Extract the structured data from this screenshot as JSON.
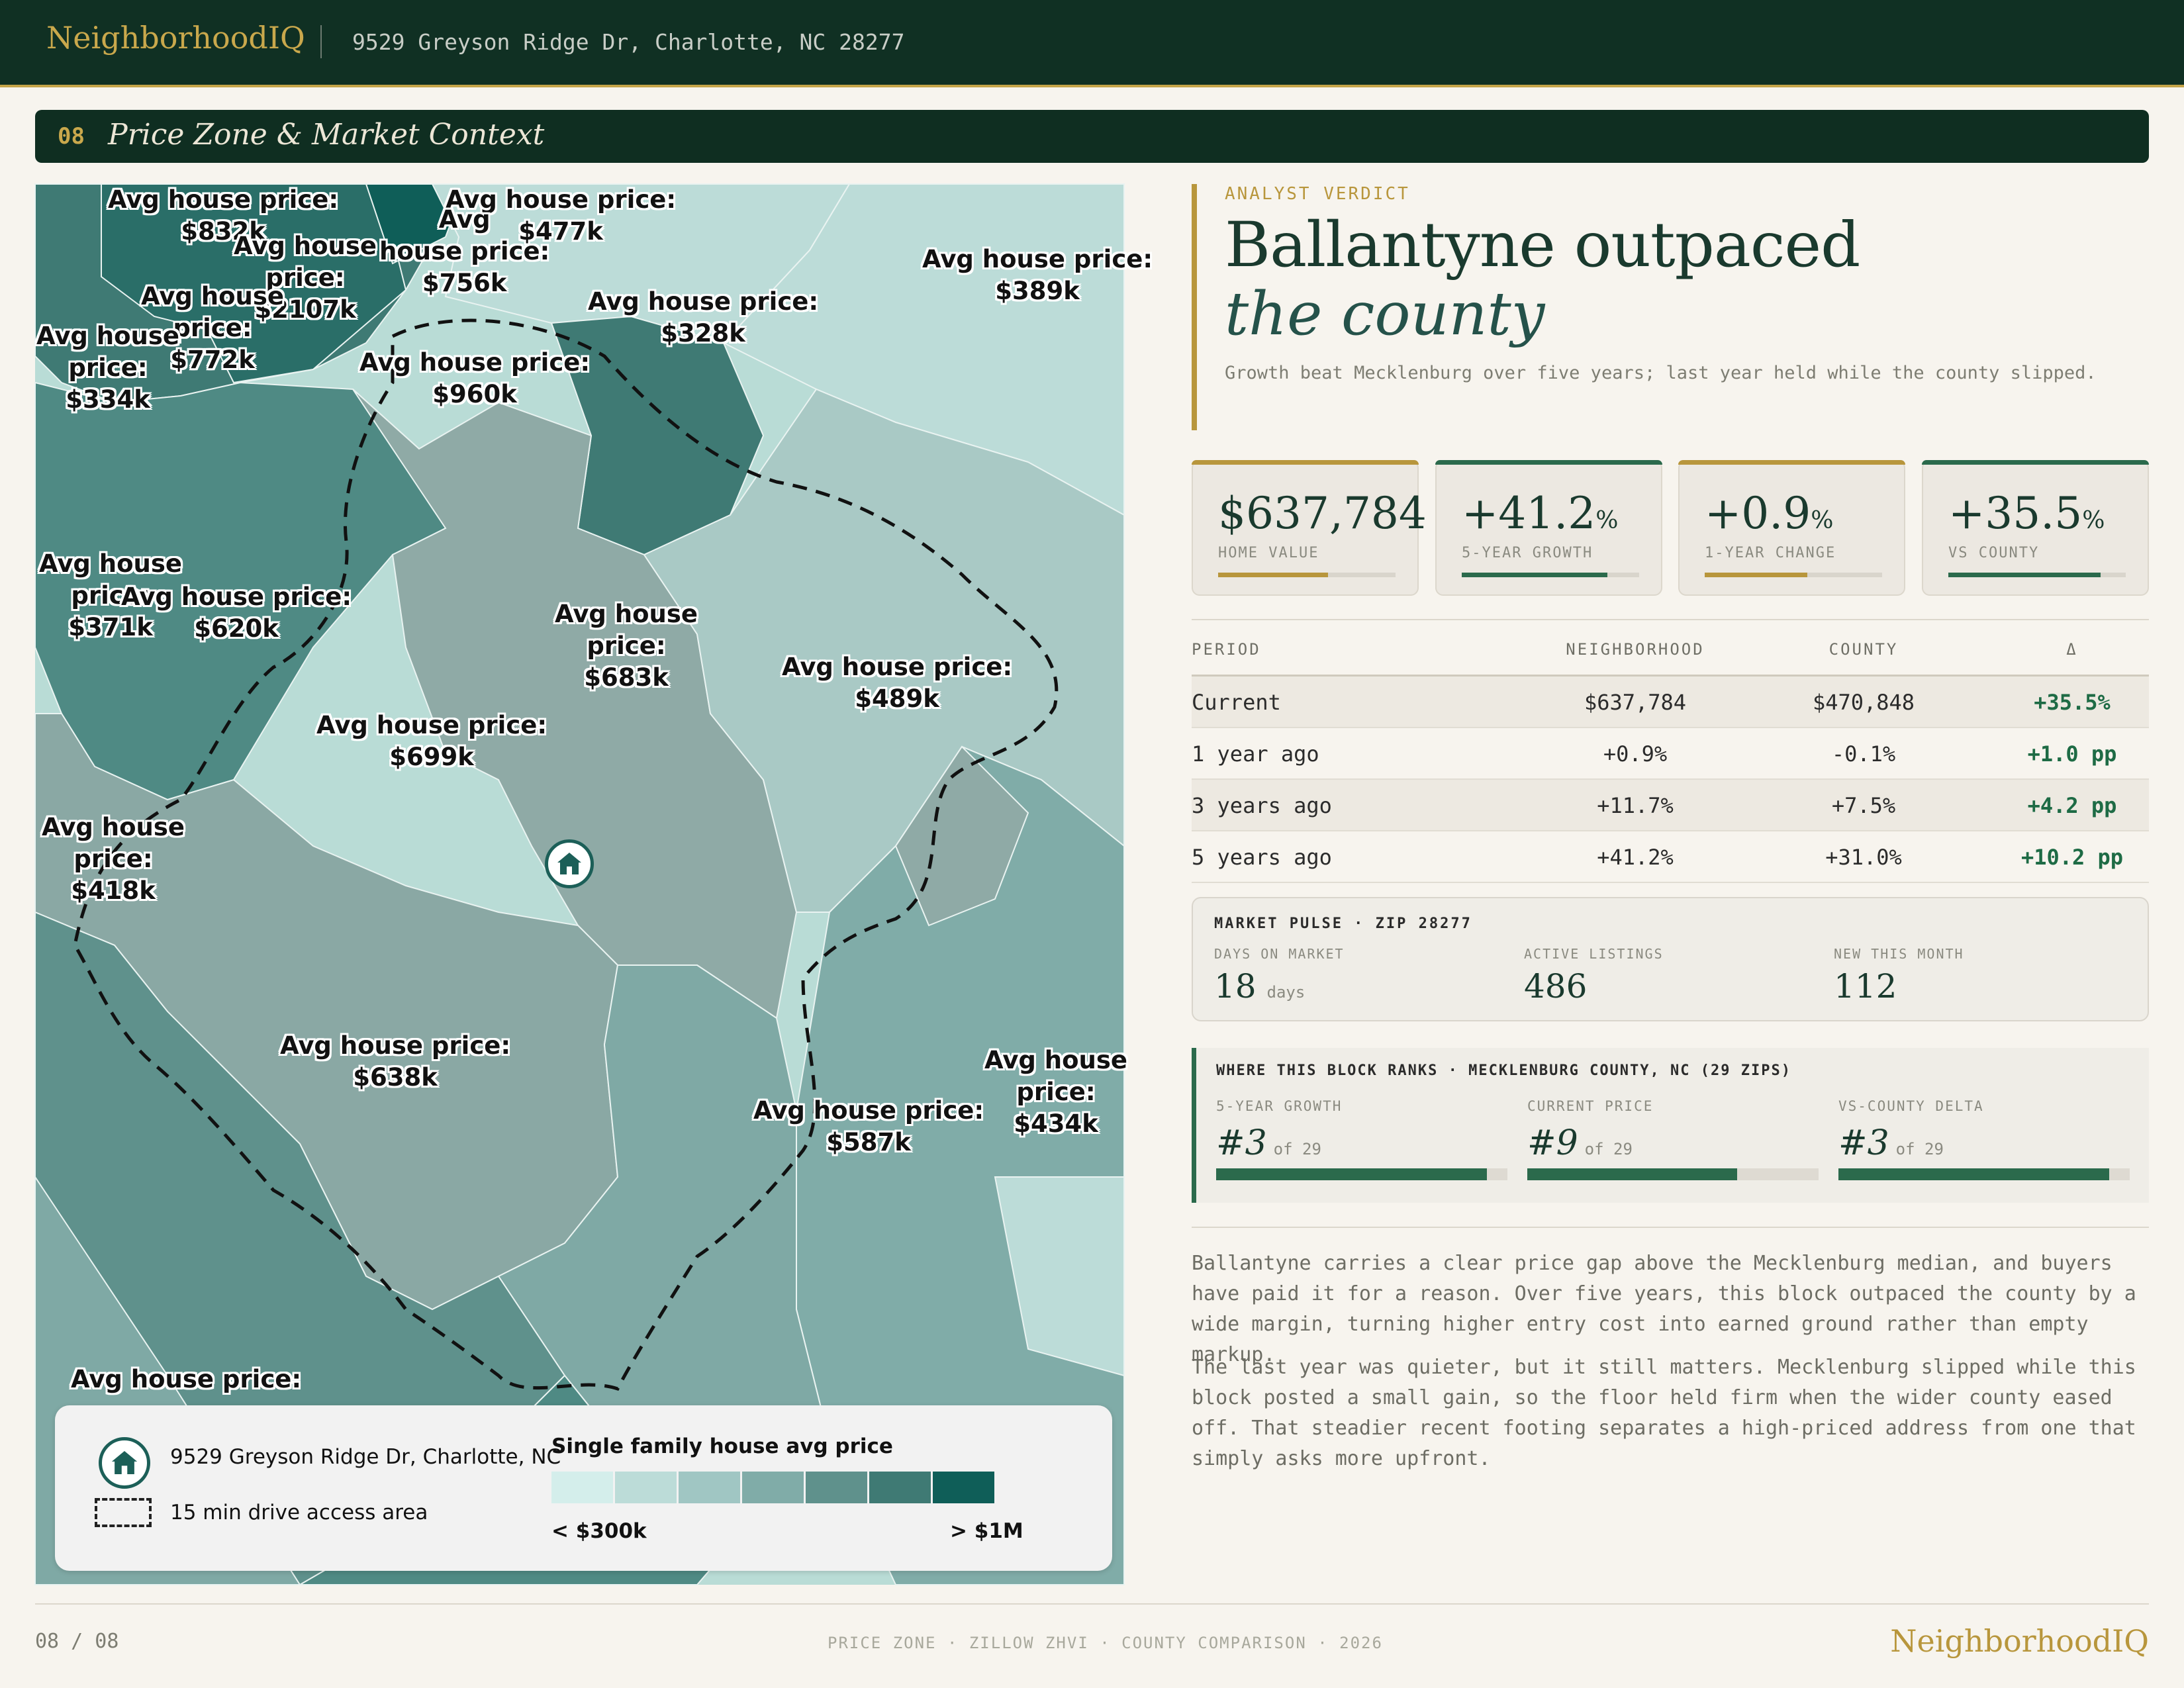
{
  "header": {
    "brand": "NeighborhoodIQ",
    "address": "9529 Greyson Ridge Dr, Charlotte, NC 28277"
  },
  "section": {
    "number": "08",
    "title": "Price Zone & Market Context"
  },
  "map": {
    "icons": {
      "home": "home-icon"
    },
    "labels": [
      "Avg house price:\n$832k",
      "Avg house price:\n$477k",
      "Avg\nhouse price:\n$756k",
      "Avg house\nprice:\n$2107k",
      "Avg house price:\n$389k",
      "Avg house\nprice:\n$772k",
      "Avg house price:\n$328k",
      "Avg house\nprice:\n$334k",
      "Avg house price:\n$960k",
      "Avg house\nprice:\n$371k",
      "Avg house price:\n$620k",
      "Avg house\nprice:\n$683k",
      "Avg house price:\n$489k",
      "Avg house price:\n$699k",
      "Avg house\nprice:\n$418k",
      "Avg house price:\n$638k",
      "Avg house price:\n$587k",
      "Avg house\nprice:\n$434k",
      "Avg house price:"
    ],
    "legend": {
      "address": "9529 Greyson Ridge Dr, Charlotte, NC",
      "drive_area": "15 min drive access area",
      "scale_title": "Single family house avg price",
      "low": "< $300k",
      "high": "> $1M",
      "colors": [
        "#d4eeeb",
        "#bcdcd8",
        "#a0c6c3",
        "#80aca8",
        "#5f918c",
        "#3f7a74",
        "#0f5e58"
      ]
    }
  },
  "verdict": {
    "kicker": "ANALYST VERDICT",
    "headline_1": "Ballantyne outpaced",
    "headline_2": "the county",
    "subhead": "Growth beat Mecklenburg over five years; last year held while the county slipped."
  },
  "kpis": [
    {
      "value": "$637,784",
      "suffix": "",
      "label": "HOME VALUE",
      "fill": 0.62,
      "color": "#b8963c"
    },
    {
      "value": "+41.2",
      "suffix": "%",
      "label": "5-YEAR GROWTH",
      "fill": 0.82,
      "color": "#2b6a4c"
    },
    {
      "value": "+0.9",
      "suffix": "%",
      "label": "1-YEAR CHANGE",
      "fill": 0.58,
      "color": "#b8963c"
    },
    {
      "value": "+35.5",
      "suffix": "%",
      "label": "VS COUNTY",
      "fill": 0.86,
      "color": "#2b6a4c"
    }
  ],
  "comparison": {
    "headers": [
      "PERIOD",
      "NEIGHBORHOOD",
      "COUNTY",
      "Δ"
    ],
    "rows": [
      {
        "period": "Current",
        "neighborhood": "$637,784",
        "county": "$470,848",
        "delta": "+35.5%"
      },
      {
        "period": "1 year ago",
        "neighborhood": "+0.9%",
        "county": "-0.1%",
        "delta": "+1.0 pp"
      },
      {
        "period": "3 years ago",
        "neighborhood": "+11.7%",
        "county": "+7.5%",
        "delta": "+4.2 pp"
      },
      {
        "period": "5 years ago",
        "neighborhood": "+41.2%",
        "county": "+31.0%",
        "delta": "+10.2 pp"
      }
    ]
  },
  "pulse": {
    "title": "MARKET PULSE · ZIP 28277",
    "items": [
      {
        "label": "DAYS ON MARKET",
        "value": "18",
        "unit": "days"
      },
      {
        "label": "ACTIVE LISTINGS",
        "value": "486",
        "unit": ""
      },
      {
        "label": "NEW THIS MONTH",
        "value": "112",
        "unit": ""
      }
    ]
  },
  "ranks": {
    "title": "WHERE THIS BLOCK RANKS · MECKLENBURG COUNTY, NC (29 ZIPS)",
    "items": [
      {
        "label": "5-YEAR GROWTH",
        "rank": "#3",
        "of": "of 29",
        "fill": 0.93
      },
      {
        "label": "CURRENT PRICE",
        "rank": "#9",
        "of": "of 29",
        "fill": 0.72
      },
      {
        "label": "VS-COUNTY DELTA",
        "rank": "#3",
        "of": "of 29",
        "fill": 0.93
      }
    ]
  },
  "body": [
    "Ballantyne carries a clear price gap above the Mecklenburg median, and buyers have paid it for a reason. Over five years, this block outpaced the county by a wide margin, turning higher entry cost into earned ground rather than empty markup.",
    "The last year was quieter, but it still matters. Mecklenburg slipped while this block posted a small gain, so the floor held firm when the wider county eased off. That steadier recent footing separates a high-priced address from one that simply asks more upfront."
  ],
  "footer": {
    "page": "08 / 08",
    "meta": "PRICE ZONE · ZILLOW ZHVI · COUNTY COMPARISON · 2026",
    "brand": "NeighborhoodIQ"
  }
}
